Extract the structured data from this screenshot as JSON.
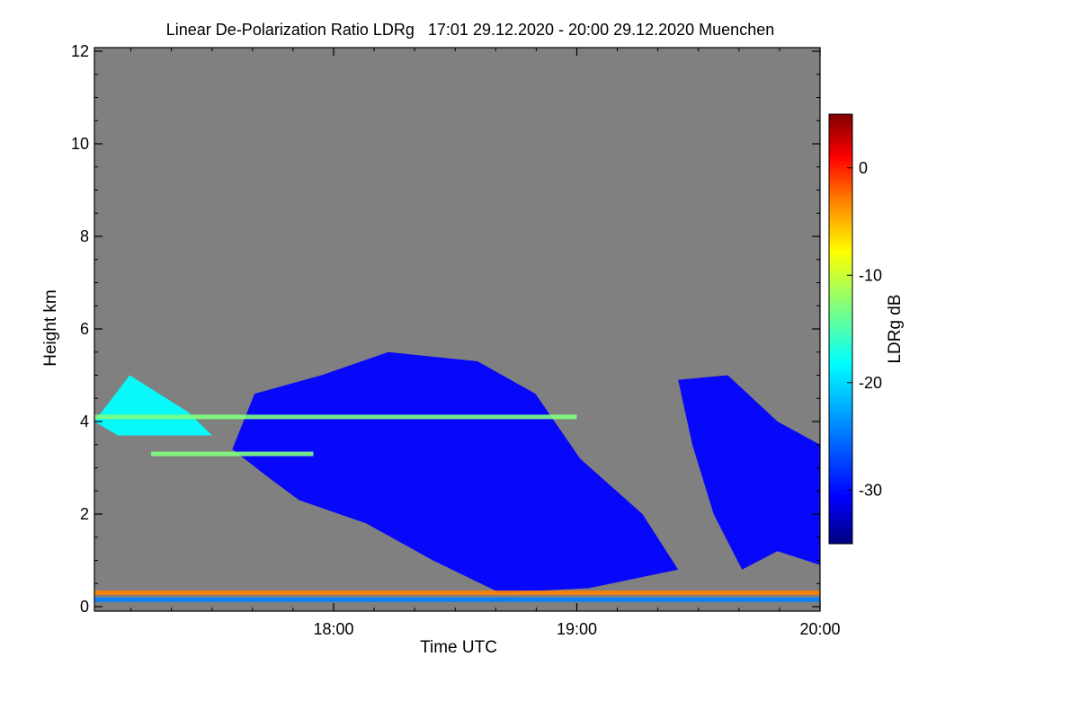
{
  "chart_data": {
    "type": "heatmap",
    "title": "Linear De-Polarization Ratio LDRg   17:01 29.12.2020 - 20:00 29.12.2020 Muenchen",
    "xlabel": "Time UTC",
    "ylabel": "Height km",
    "x_range": [
      "17:01",
      "20:00"
    ],
    "x_ticks": [
      "18:00",
      "19:00",
      "20:00"
    ],
    "ylim": [
      0,
      12
    ],
    "y_ticks": [
      0,
      2,
      4,
      6,
      8,
      10,
      12
    ],
    "background_color": "#808080",
    "colorbar": {
      "label": "LDRg dB",
      "range": [
        -35,
        5
      ],
      "ticks": [
        0,
        -10,
        -20,
        -30
      ],
      "colormap": [
        "#00007f",
        "#0000ff",
        "#007fff",
        "#00ffff",
        "#7fff7f",
        "#ffff00",
        "#ff7f00",
        "#ff0000",
        "#7f0000"
      ]
    },
    "features": [
      {
        "name": "main-cloud",
        "time_start": "17:35",
        "time_end": "19:25",
        "height_top_km": 5.5,
        "height_bottom_km": 0.4,
        "ldr_db": -30
      },
      {
        "name": "second-cloud",
        "time_start": "19:25",
        "time_end": "20:00",
        "height_top_km": 5.0,
        "height_bottom_km": 0.8,
        "ldr_db": -30
      },
      {
        "name": "upper-layer-left",
        "time_start": "17:01",
        "time_end": "17:30",
        "height_top_km": 5.0,
        "height_bottom_km": 3.7,
        "ldr_db": -22
      },
      {
        "name": "layer-4km",
        "time_start": "17:01",
        "time_end": "19:00",
        "height_km": 4.1,
        "ldr_db": -15
      },
      {
        "name": "layer-3.3km",
        "time_start": "17:15",
        "time_end": "17:55",
        "height_km": 3.3,
        "ldr_db": -15
      },
      {
        "name": "surface-layer",
        "time_start": "17:01",
        "time_end": "20:00",
        "height_km": 0.3,
        "ldr_db": -5
      },
      {
        "name": "near-ground",
        "time_start": "17:01",
        "time_end": "20:00",
        "height_km": 0.15,
        "ldr_db": -25
      }
    ]
  }
}
